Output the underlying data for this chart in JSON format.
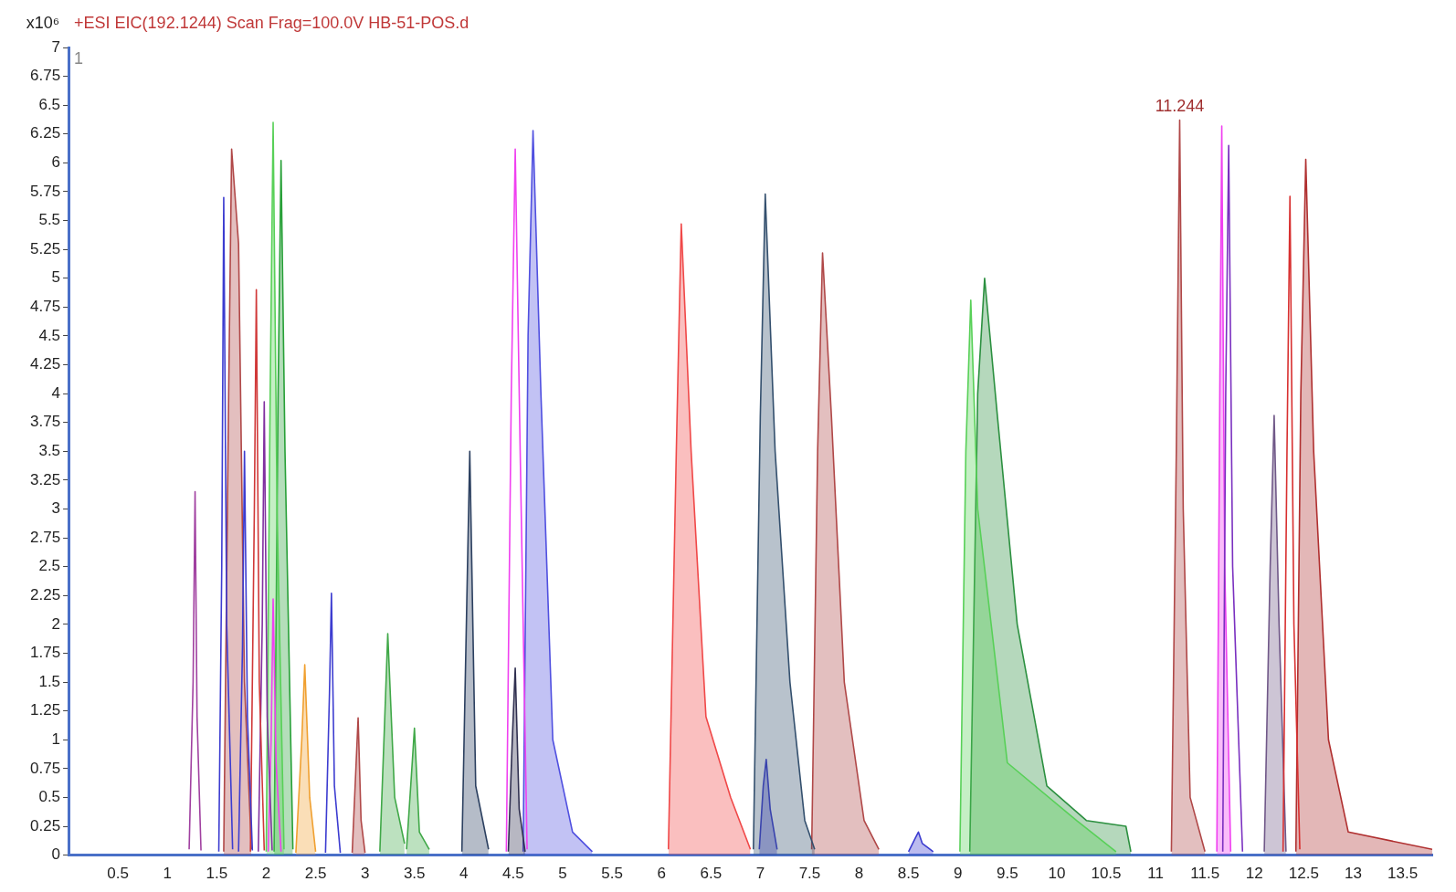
{
  "chart_data": {
    "type": "line",
    "title": "+ESI EIC(192.1244) Scan Frag=100.0V HB-51-POS.d",
    "ylabel": "x10⁶",
    "xlim": [
      0,
      13.8
    ],
    "xticks": [
      0.5,
      1,
      1.5,
      2,
      2.5,
      3,
      3.5,
      4,
      4.5,
      5,
      5.5,
      6,
      6.5,
      7,
      7.5,
      8,
      8.5,
      9,
      9.5,
      10,
      10.5,
      11,
      11.5,
      12,
      12.5,
      13,
      13.5
    ],
    "ylim": [
      0,
      7
    ],
    "yticks": [
      0,
      0.25,
      0.5,
      0.75,
      1,
      1.25,
      1.5,
      1.75,
      2,
      2.25,
      2.5,
      2.75,
      3,
      3.25,
      3.5,
      3.75,
      4,
      4.25,
      4.5,
      4.75,
      5,
      5.25,
      5.5,
      5.75,
      6,
      6.25,
      6.5,
      6.75,
      7
    ],
    "grid": false,
    "marker": "none",
    "annotations": [
      "1",
      {
        "text": "11.244",
        "x": 11.244,
        "y": 6.37
      }
    ],
    "series": [
      {
        "type": "line",
        "color": "#a040a0",
        "x": [
          1.22,
          1.26,
          1.28,
          1.3,
          1.34
        ],
        "values": [
          0.05,
          1.5,
          3.15,
          1.2,
          0.04
        ]
      },
      {
        "type": "line",
        "color": "#3c3cd0",
        "x": [
          1.52,
          1.55,
          1.57,
          1.6,
          1.66
        ],
        "values": [
          0.03,
          2.5,
          5.7,
          2.0,
          0.05
        ]
      },
      {
        "type": "area",
        "color": "#b04848",
        "x": [
          1.57,
          1.62,
          1.65,
          1.72,
          1.78,
          1.85
        ],
        "values": [
          0.03,
          4.0,
          6.12,
          5.3,
          1.5,
          0.05
        ]
      },
      {
        "type": "line",
        "color": "#3c3cd0",
        "x": [
          1.72,
          1.76,
          1.78,
          1.81,
          1.86
        ],
        "values": [
          0.03,
          1.8,
          3.5,
          1.2,
          0.04
        ]
      },
      {
        "type": "line",
        "color": "#d03838",
        "x": [
          1.84,
          1.88,
          1.9,
          1.93,
          1.98
        ],
        "values": [
          0.03,
          3.0,
          4.9,
          1.5,
          0.04
        ]
      },
      {
        "type": "line",
        "color": "#8030a0",
        "x": [
          1.92,
          1.96,
          1.98,
          2.01,
          2.06
        ],
        "values": [
          0.03,
          2.0,
          3.93,
          1.2,
          0.04
        ]
      },
      {
        "type": "line",
        "color": "#f040f0",
        "x": [
          2.02,
          2.05,
          2.07,
          2.1,
          2.15
        ],
        "values": [
          0.03,
          1.0,
          2.22,
          0.8,
          0.03
        ]
      },
      {
        "type": "area",
        "color": "#58d058",
        "x": [
          2.0,
          2.04,
          2.07,
          2.11,
          2.18
        ],
        "values": [
          0.03,
          4.0,
          6.35,
          3.0,
          0.05
        ]
      },
      {
        "type": "area",
        "color": "#28a038",
        "x": [
          2.08,
          2.12,
          2.15,
          2.19,
          2.27
        ],
        "values": [
          0.03,
          4.0,
          6.02,
          3.5,
          0.05
        ]
      },
      {
        "type": "area",
        "color": "#f0a030",
        "x": [
          2.3,
          2.36,
          2.39,
          2.44,
          2.5
        ],
        "values": [
          0.02,
          1.0,
          1.65,
          0.5,
          0.03
        ]
      },
      {
        "type": "line",
        "color": "#3c3cd0",
        "x": [
          2.6,
          2.64,
          2.66,
          2.69,
          2.75
        ],
        "values": [
          0.02,
          1.4,
          2.27,
          0.6,
          0.02
        ]
      },
      {
        "type": "area",
        "color": "#b04848",
        "x": [
          2.87,
          2.91,
          2.93,
          2.96,
          3.0
        ],
        "values": [
          0.02,
          0.8,
          1.19,
          0.3,
          0.02
        ]
      },
      {
        "type": "area",
        "color": "#40a848",
        "x": [
          3.15,
          3.2,
          3.23,
          3.3,
          3.4
        ],
        "values": [
          0.03,
          1.2,
          1.92,
          0.5,
          0.1
        ]
      },
      {
        "type": "area",
        "color": "#40a848",
        "x": [
          3.42,
          3.47,
          3.5,
          3.55,
          3.65
        ],
        "values": [
          0.05,
          0.7,
          1.1,
          0.2,
          0.05
        ]
      },
      {
        "type": "area",
        "color": "#2c4060",
        "x": [
          3.98,
          4.03,
          4.06,
          4.12,
          4.25
        ],
        "values": [
          0.03,
          2.2,
          3.5,
          0.6,
          0.05
        ]
      },
      {
        "type": "area",
        "color": "#303050",
        "x": [
          4.45,
          4.49,
          4.52,
          4.56,
          4.62
        ],
        "values": [
          0.03,
          1.0,
          1.62,
          0.4,
          0.03
        ]
      },
      {
        "type": "line",
        "color": "#f040f0",
        "x": [
          4.43,
          4.48,
          4.52,
          4.57,
          4.64
        ],
        "values": [
          0.03,
          4.0,
          6.12,
          3.5,
          0.05
        ]
      },
      {
        "type": "area",
        "color": "#5050e0",
        "x": [
          4.6,
          4.65,
          4.7,
          4.78,
          4.9,
          5.1,
          5.3
        ],
        "values": [
          0.03,
          4.5,
          6.28,
          4.0,
          1.0,
          0.2,
          0.03
        ]
      },
      {
        "type": "area",
        "color": "#f04848",
        "x": [
          6.07,
          6.15,
          6.2,
          6.3,
          6.45,
          6.7,
          6.9
        ],
        "values": [
          0.05,
          3.5,
          5.47,
          3.5,
          1.2,
          0.5,
          0.05
        ]
      },
      {
        "type": "area",
        "color": "#34506e",
        "x": [
          6.93,
          7.0,
          7.05,
          7.15,
          7.3,
          7.45,
          7.55
        ],
        "values": [
          0.05,
          3.8,
          5.73,
          3.5,
          1.5,
          0.3,
          0.05
        ]
      },
      {
        "type": "area",
        "color": "#3c3cd0",
        "x": [
          6.99,
          7.03,
          7.06,
          7.1,
          7.17
        ],
        "values": [
          0.05,
          0.6,
          0.83,
          0.4,
          0.05
        ]
      },
      {
        "type": "area",
        "color": "#b04848",
        "x": [
          7.52,
          7.58,
          7.63,
          7.72,
          7.85,
          8.05,
          8.2
        ],
        "values": [
          0.05,
          3.5,
          5.22,
          3.8,
          1.5,
          0.3,
          0.05
        ]
      },
      {
        "type": "area",
        "color": "#3c3cd0",
        "x": [
          8.5,
          8.57,
          8.6,
          8.64,
          8.75
        ],
        "values": [
          0.03,
          0.15,
          0.2,
          0.1,
          0.03
        ]
      },
      {
        "type": "area",
        "color": "#58d058",
        "x": [
          9.02,
          9.08,
          9.13,
          9.2,
          9.5,
          10.2,
          10.6
        ],
        "values": [
          0.03,
          3.5,
          4.81,
          3.0,
          0.8,
          0.3,
          0.03
        ]
      },
      {
        "type": "area",
        "color": "#2c9040",
        "x": [
          9.12,
          9.2,
          9.27,
          9.4,
          9.6,
          9.9,
          10.3,
          10.7,
          10.75
        ],
        "values": [
          0.03,
          4.0,
          5.0,
          3.8,
          2.0,
          0.6,
          0.3,
          0.25,
          0.03
        ]
      },
      {
        "type": "area",
        "color": "#b04848",
        "x": [
          11.16,
          11.21,
          11.244,
          11.28,
          11.35,
          11.5
        ],
        "values": [
          0.03,
          3.5,
          6.37,
          3.0,
          0.5,
          0.03
        ]
      },
      {
        "type": "area",
        "color": "#f040f0",
        "x": [
          11.62,
          11.65,
          11.67,
          11.7,
          11.76
        ],
        "values": [
          0.03,
          4.0,
          6.32,
          2.5,
          0.03
        ]
      },
      {
        "type": "line",
        "color": "#7a30c0",
        "x": [
          11.68,
          11.71,
          11.74,
          11.78,
          11.88
        ],
        "values": [
          0.03,
          4.0,
          6.15,
          2.5,
          0.03
        ]
      },
      {
        "type": "area",
        "color": "#705888",
        "x": [
          12.1,
          12.16,
          12.2,
          12.25,
          12.32
        ],
        "values": [
          0.03,
          2.5,
          3.81,
          2.0,
          0.03
        ]
      },
      {
        "type": "line",
        "color": "#d83030",
        "x": [
          12.29,
          12.33,
          12.36,
          12.4,
          12.46
        ],
        "values": [
          0.03,
          3.5,
          5.71,
          2.0,
          0.05
        ]
      },
      {
        "type": "area",
        "color": "#b03030",
        "x": [
          12.42,
          12.47,
          12.52,
          12.6,
          12.75,
          12.95,
          13.8
        ],
        "values": [
          0.03,
          4.0,
          6.03,
          3.5,
          1.0,
          0.2,
          0.05
        ]
      }
    ]
  }
}
